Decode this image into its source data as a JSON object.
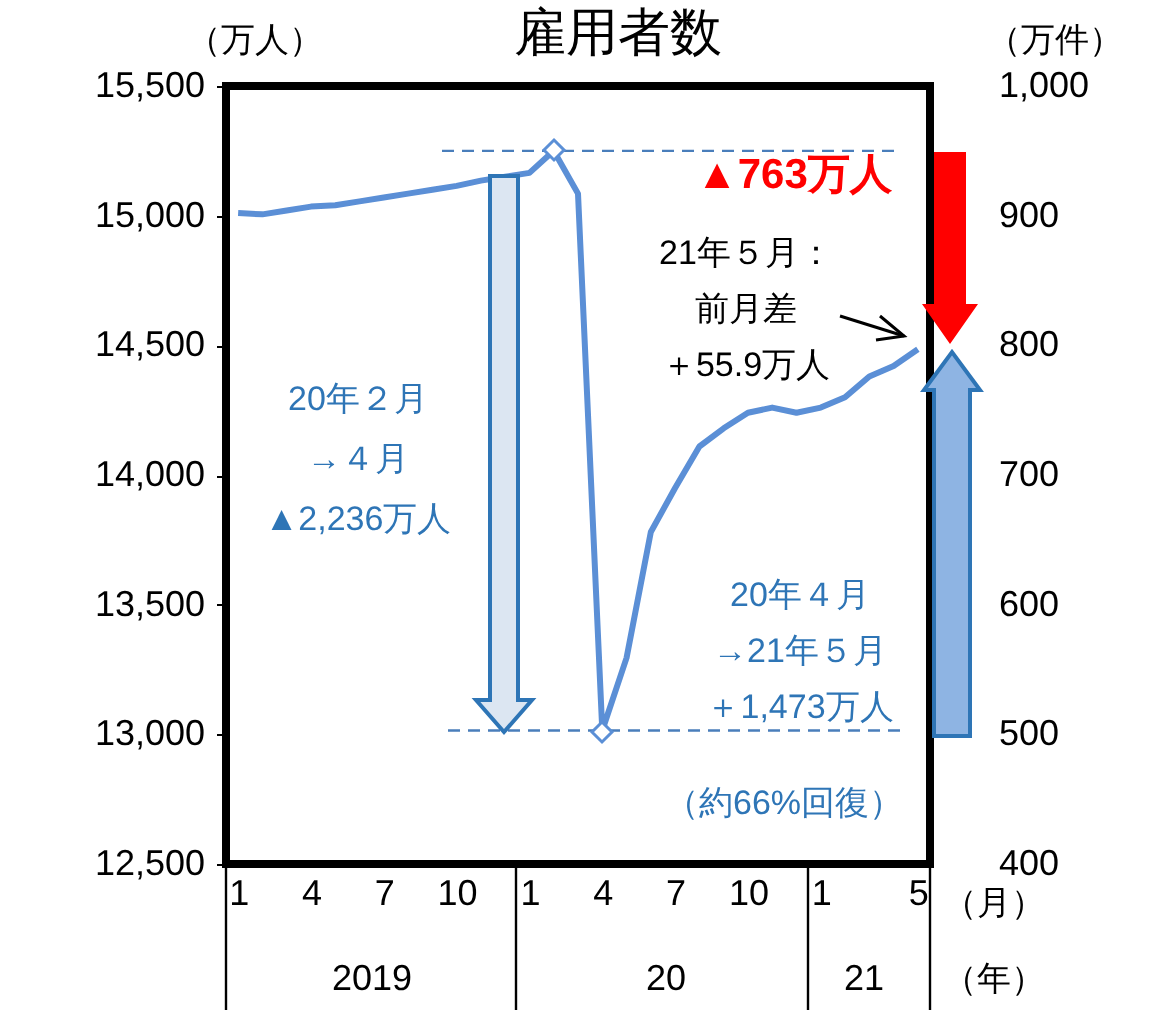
{
  "chart_data": {
    "type": "line",
    "title": "雇用者数",
    "ylabel": "（万人）",
    "y2label": "（万件）",
    "categories": [
      "1",
      null,
      null,
      "4",
      null,
      null,
      "7",
      null,
      null,
      "10",
      null,
      null,
      "1",
      null,
      null,
      "4",
      null,
      null,
      "7",
      null,
      null,
      "10",
      null,
      null,
      "1",
      null,
      null,
      null,
      "5"
    ],
    "series": [
      {
        "color": "#5b8fd6",
        "values": [
          15010,
          15005,
          15020,
          15035,
          15040,
          15055,
          15070,
          15085,
          15100,
          15115,
          15135,
          15150,
          15165,
          15250,
          15085,
          13015,
          13295,
          13780,
          13950,
          14110,
          14180,
          14240,
          14260,
          14240,
          14260,
          14300,
          14380,
          14420,
          14485
        ]
      }
    ],
    "ylim": [
      12500,
      15500
    ],
    "yticks": [
      {
        "value": 12500,
        "label": "12,500"
      },
      {
        "value": 13000,
        "label": "13,000"
      },
      {
        "value": 13500,
        "label": "13,500"
      },
      {
        "value": 14000,
        "label": "14,000"
      },
      {
        "value": 14500,
        "label": "14,500"
      },
      {
        "value": 15000,
        "label": "15,000"
      },
      {
        "value": 15500,
        "label": "15,500"
      }
    ],
    "y2lim": [
      400,
      1000
    ],
    "y2ticks": [
      400,
      500,
      600,
      700,
      800,
      900,
      {
        "value": 1000,
        "label": "1,000"
      }
    ],
    "ref_lines": [
      {
        "axis": "y",
        "value": 15250,
        "color": "#4a7ebb",
        "line_style": "dashed"
      },
      {
        "axis": "y",
        "value": 13015,
        "color": "#4a7ebb",
        "line_style": "dashed"
      }
    ],
    "annotations": [
      "20年２月",
      "→４月",
      "▲2,236万人",
      "20年４月",
      "→21年５月",
      "＋1,473万人",
      "（約66%回復）",
      "▲763万人",
      "21年５月：",
      "前月差",
      "＋55.9万人",
      "2019",
      "20",
      "21",
      "（月）",
      "（年）"
    ]
  }
}
